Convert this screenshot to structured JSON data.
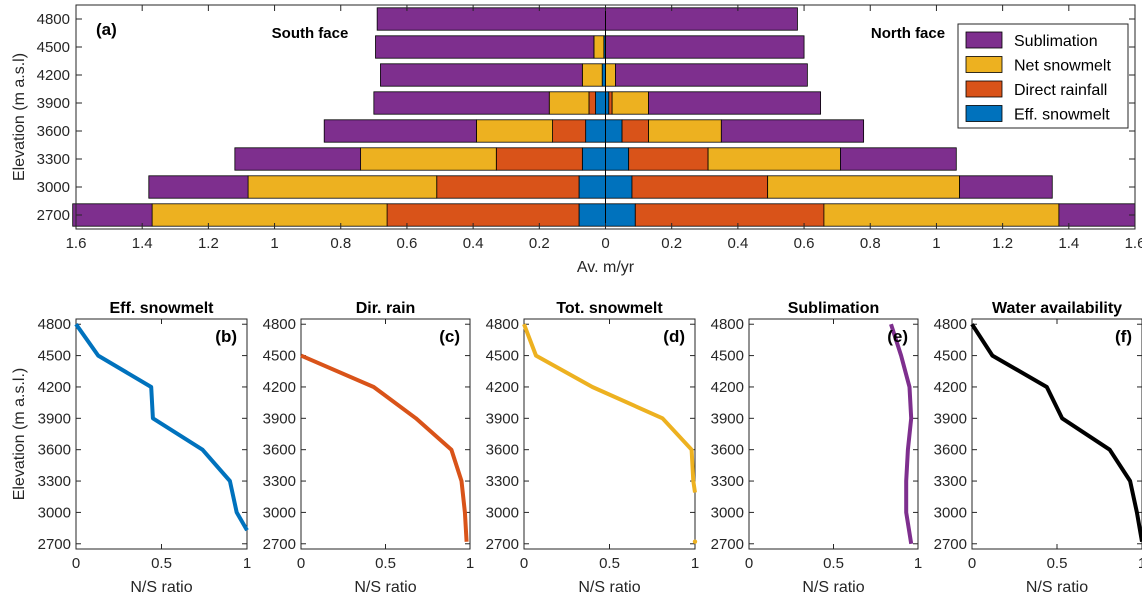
{
  "colors": {
    "sublimation": "#7E2F8E",
    "net_snowmelt": "#EDB120",
    "direct_rainfall": "#D95319",
    "eff_snowmelt": "#0072BD",
    "water_availability": "#000000"
  },
  "chart_data": [
    {
      "type": "bar",
      "orientation": "horizontal-stacked-diverging",
      "panel_label": "(a)",
      "left_annotation": "South face",
      "right_annotation": "North face",
      "xlabel": "Av. m/yr",
      "ylabel": "Elevation (m a.s.l)",
      "xlim": [
        -1.6,
        1.6
      ],
      "xticks": [
        -1.6,
        -1.4,
        -1.2,
        -1,
        -0.8,
        -0.6,
        -0.4,
        -0.2,
        0,
        0.2,
        0.4,
        0.6,
        0.8,
        1,
        1.2,
        1.4,
        1.6
      ],
      "xtick_labels": [
        "1.6",
        "1.4",
        "1.2",
        "1",
        "0.8",
        "0.6",
        "0.4",
        "0.2",
        "0",
        "0.2",
        "0.4",
        "0.6",
        "0.8",
        "1",
        "1.2",
        "1.4",
        "1.6"
      ],
      "categories": [
        "2700",
        "3000",
        "3300",
        "3600",
        "3900",
        "4200",
        "4500",
        "4800"
      ],
      "legend_position": "top-right",
      "legend": [
        "Sublimation",
        "Net snowmelt",
        "Direct rainfall",
        "Eff. snowmelt"
      ],
      "south": [
        {
          "name": "Eff. snowmelt",
          "color_key": "eff_snowmelt",
          "values": [
            0.08,
            0.08,
            0.07,
            0.06,
            0.03,
            0.01,
            0.005,
            0.0
          ]
        },
        {
          "name": "Direct rainfall",
          "color_key": "direct_rainfall",
          "values": [
            0.58,
            0.43,
            0.26,
            0.1,
            0.02,
            0.0,
            0.0,
            0.0
          ]
        },
        {
          "name": "Net snowmelt",
          "color_key": "net_snowmelt",
          "values": [
            0.71,
            0.57,
            0.41,
            0.23,
            0.12,
            0.06,
            0.03,
            0.0
          ]
        },
        {
          "name": "Sublimation",
          "color_key": "sublimation",
          "values": [
            0.24,
            0.3,
            0.38,
            0.46,
            0.53,
            0.61,
            0.66,
            0.69
          ]
        }
      ],
      "north": [
        {
          "name": "Eff. snowmelt",
          "color_key": "eff_snowmelt",
          "values": [
            0.09,
            0.08,
            0.07,
            0.05,
            0.01,
            0.0,
            0.0,
            0.0
          ]
        },
        {
          "name": "Direct rainfall",
          "color_key": "direct_rainfall",
          "values": [
            0.57,
            0.41,
            0.24,
            0.08,
            0.01,
            0.0,
            0.0,
            0.0
          ]
        },
        {
          "name": "Net snowmelt",
          "color_key": "net_snowmelt",
          "values": [
            0.71,
            0.58,
            0.4,
            0.22,
            0.11,
            0.03,
            0.0,
            0.0
          ]
        },
        {
          "name": "Sublimation",
          "color_key": "sublimation",
          "values": [
            0.23,
            0.28,
            0.35,
            0.43,
            0.52,
            0.58,
            0.6,
            0.58
          ]
        }
      ]
    },
    {
      "type": "line",
      "title": "Eff. snowmelt",
      "panel_label": "(b)",
      "color_key": "eff_snowmelt",
      "xlabel": "N/S ratio",
      "ylabel": "Elevation (m a.s.l.)",
      "xlim": [
        0,
        1
      ],
      "ylim": [
        2650,
        4850
      ],
      "xticks": [
        "0",
        "0.5",
        "1"
      ],
      "yticks": [
        "2700",
        "3000",
        "3300",
        "3600",
        "3900",
        "4200",
        "4500",
        "4800"
      ],
      "x": [
        0.0,
        0.13,
        0.44,
        0.45,
        0.74,
        0.9,
        0.94,
        1.0
      ],
      "y": [
        4800,
        4500,
        4200,
        3900,
        3600,
        3300,
        3000,
        2830
      ]
    },
    {
      "type": "line",
      "title": "Dir. rain",
      "panel_label": "(c)",
      "color_key": "direct_rainfall",
      "xlabel": "N/S ratio",
      "ylabel": "",
      "xlim": [
        0,
        1
      ],
      "ylim": [
        2650,
        4850
      ],
      "xticks": [
        "0",
        "0.5",
        "1"
      ],
      "yticks": [
        "2700",
        "3000",
        "3300",
        "3600",
        "3900",
        "4200",
        "4500",
        "4800"
      ],
      "x": [
        0.0,
        0.43,
        0.68,
        0.89,
        0.95,
        0.97,
        0.98
      ],
      "y": [
        4500,
        4200,
        3900,
        3600,
        3300,
        3000,
        2720
      ]
    },
    {
      "type": "line",
      "title": "Tot. snowmelt",
      "panel_label": "(d)",
      "color_key": "net_snowmelt",
      "xlabel": "N/S ratio",
      "ylabel": "",
      "xlim": [
        0,
        1
      ],
      "ylim": [
        2650,
        4850
      ],
      "xticks": [
        "0",
        "0.5",
        "1"
      ],
      "yticks": [
        "2700",
        "3000",
        "3300",
        "3600",
        "3900",
        "4200",
        "4500",
        "4800"
      ],
      "x": [
        0.0,
        0.07,
        0.4,
        0.81,
        0.98,
        0.99,
        1.0
      ],
      "y": [
        4800,
        4500,
        4200,
        3900,
        3600,
        3300,
        3190
      ],
      "extra_point": {
        "x": 1.0,
        "y": 2720
      }
    },
    {
      "type": "line",
      "title": "Sublimation",
      "panel_label": "(e)",
      "color_key": "sublimation",
      "xlabel": "N/S ratio",
      "ylabel": "",
      "xlim": [
        0,
        1
      ],
      "ylim": [
        2650,
        4850
      ],
      "xticks": [
        "0",
        "0.5",
        "1"
      ],
      "yticks": [
        "2700",
        "3000",
        "3300",
        "3600",
        "3900",
        "4200",
        "4500",
        "4800"
      ],
      "x": [
        0.84,
        0.9,
        0.95,
        0.96,
        0.94,
        0.93,
        0.93,
        0.96
      ],
      "y": [
        4800,
        4500,
        4200,
        3900,
        3600,
        3300,
        3000,
        2700
      ]
    },
    {
      "type": "line",
      "title": "Water availability",
      "panel_label": "(f)",
      "color_key": "water_availability",
      "xlabel": "N/S ratio",
      "ylabel": "",
      "xlim": [
        0,
        1
      ],
      "ylim": [
        2650,
        4850
      ],
      "xticks": [
        "0",
        "0.5",
        "1"
      ],
      "yticks": [
        "2700",
        "3000",
        "3300",
        "3600",
        "3900",
        "4200",
        "4500",
        "4800"
      ],
      "x": [
        0.0,
        0.12,
        0.44,
        0.53,
        0.81,
        0.93,
        0.97,
        1.0
      ],
      "y": [
        4800,
        4500,
        4200,
        3900,
        3600,
        3300,
        3000,
        2720
      ]
    }
  ]
}
